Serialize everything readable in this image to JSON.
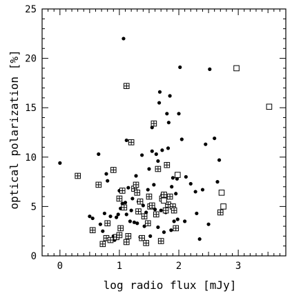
{
  "chart_data": {
    "type": "scatter",
    "xlabel": "log radio flux [mJy]",
    "ylabel": "optical polarization [%]",
    "xlim": [
      -0.3,
      3.8
    ],
    "ylim": [
      0,
      25
    ],
    "x_ticks": [
      "0",
      "1",
      "2",
      "3"
    ],
    "y_ticks": [
      "0",
      "5",
      "10",
      "15",
      "20",
      "25"
    ],
    "x_tick_values": [
      0,
      1,
      2,
      3
    ],
    "y_tick_values": [
      0,
      5,
      10,
      15,
      20,
      25
    ],
    "grid": false,
    "series": [
      {
        "marker": "filled-circle",
        "color": "#000000",
        "points": [
          [
            0.0,
            9.4
          ],
          [
            0.5,
            4.0
          ],
          [
            0.55,
            3.8
          ],
          [
            0.65,
            10.3
          ],
          [
            0.68,
            3.2
          ],
          [
            0.72,
            2.5
          ],
          [
            0.75,
            4.3
          ],
          [
            0.78,
            8.3
          ],
          [
            0.8,
            7.6
          ],
          [
            0.85,
            4.0
          ],
          [
            0.9,
            2.0
          ],
          [
            0.92,
            1.6
          ],
          [
            0.95,
            3.9
          ],
          [
            0.98,
            4.2
          ],
          [
            1.0,
            6.6
          ],
          [
            1.02,
            4.8
          ],
          [
            1.05,
            5.3
          ],
          [
            1.07,
            22.0
          ],
          [
            1.1,
            5.4
          ],
          [
            1.12,
            4.2
          ],
          [
            1.12,
            11.7
          ],
          [
            1.15,
            6.9
          ],
          [
            1.18,
            3.5
          ],
          [
            1.2,
            4.6
          ],
          [
            1.22,
            5.8
          ],
          [
            1.25,
            3.4
          ],
          [
            1.28,
            8.1
          ],
          [
            1.3,
            3.3
          ],
          [
            1.32,
            5.5
          ],
          [
            1.35,
            1.9
          ],
          [
            1.38,
            10.2
          ],
          [
            1.4,
            5.1
          ],
          [
            1.42,
            3.0
          ],
          [
            1.45,
            4.4
          ],
          [
            1.48,
            6.7
          ],
          [
            1.5,
            8.8
          ],
          [
            1.52,
            2.0
          ],
          [
            1.55,
            10.6
          ],
          [
            1.55,
            13.0
          ],
          [
            1.58,
            7.2
          ],
          [
            1.6,
            4.7
          ],
          [
            1.62,
            4.1
          ],
          [
            1.62,
            10.3
          ],
          [
            1.65,
            2.9
          ],
          [
            1.65,
            9.6
          ],
          [
            1.67,
            15.5
          ],
          [
            1.68,
            16.6
          ],
          [
            1.7,
            4.6
          ],
          [
            1.72,
            6.2
          ],
          [
            1.72,
            10.7
          ],
          [
            1.75,
            2.4
          ],
          [
            1.78,
            4.4
          ],
          [
            1.8,
            14.4
          ],
          [
            1.82,
            10.9
          ],
          [
            1.83,
            13.5
          ],
          [
            1.85,
            16.2
          ],
          [
            1.87,
            2.6
          ],
          [
            1.88,
            7.0
          ],
          [
            1.9,
            7.9
          ],
          [
            1.92,
            3.5
          ],
          [
            1.95,
            6.3
          ],
          [
            1.97,
            7.8
          ],
          [
            1.98,
            3.7
          ],
          [
            2.0,
            14.4
          ],
          [
            2.02,
            19.1
          ],
          [
            2.05,
            11.8
          ],
          [
            2.1,
            3.5
          ],
          [
            2.12,
            8.0
          ],
          [
            2.2,
            7.3
          ],
          [
            2.28,
            6.5
          ],
          [
            2.3,
            4.3
          ],
          [
            2.35,
            1.7
          ],
          [
            2.4,
            6.7
          ],
          [
            2.45,
            11.3
          ],
          [
            2.5,
            3.2
          ],
          [
            2.52,
            18.9
          ],
          [
            2.6,
            11.9
          ],
          [
            2.65,
            7.5
          ],
          [
            2.68,
            9.7
          ]
        ]
      },
      {
        "marker": "boxed-plus",
        "color": "#000000",
        "points": [
          [
            0.3,
            8.1
          ],
          [
            0.55,
            2.6
          ],
          [
            0.65,
            7.2
          ],
          [
            0.72,
            1.2
          ],
          [
            0.78,
            1.8
          ],
          [
            0.8,
            3.3
          ],
          [
            0.85,
            1.6
          ],
          [
            0.9,
            8.7
          ],
          [
            0.95,
            1.9
          ],
          [
            1.0,
            2.1
          ],
          [
            1.0,
            5.8
          ],
          [
            1.02,
            2.8
          ],
          [
            1.05,
            6.6
          ],
          [
            1.08,
            4.9
          ],
          [
            1.12,
            1.4
          ],
          [
            1.12,
            17.2
          ],
          [
            1.15,
            2.0
          ],
          [
            1.2,
            11.5
          ],
          [
            1.25,
            6.8
          ],
          [
            1.28,
            7.2
          ],
          [
            1.3,
            6.4
          ],
          [
            1.32,
            4.5
          ],
          [
            1.35,
            5.5
          ],
          [
            1.38,
            1.8
          ],
          [
            1.42,
            4.0
          ],
          [
            1.45,
            1.3
          ],
          [
            1.48,
            3.3
          ],
          [
            1.5,
            6.0
          ],
          [
            1.52,
            5.0
          ],
          [
            1.55,
            5.1
          ],
          [
            1.58,
            13.4
          ],
          [
            1.62,
            4.2
          ],
          [
            1.65,
            8.8
          ],
          [
            1.7,
            1.5
          ],
          [
            1.72,
            5.8
          ],
          [
            1.75,
            6.2
          ],
          [
            1.78,
            4.6
          ],
          [
            1.8,
            9.2
          ],
          [
            1.82,
            5.2
          ],
          [
            1.85,
            6.0
          ],
          [
            1.9,
            5.0
          ],
          [
            1.92,
            4.6
          ],
          [
            1.95,
            2.8
          ],
          [
            2.7,
            4.4
          ]
        ]
      },
      {
        "marker": "open-square",
        "color": "#000000",
        "points": [
          [
            1.75,
            5.6
          ],
          [
            1.98,
            8.2
          ],
          [
            2.72,
            6.4
          ],
          [
            2.75,
            5.0
          ],
          [
            2.97,
            19.0
          ],
          [
            3.52,
            15.1
          ]
        ]
      }
    ]
  }
}
